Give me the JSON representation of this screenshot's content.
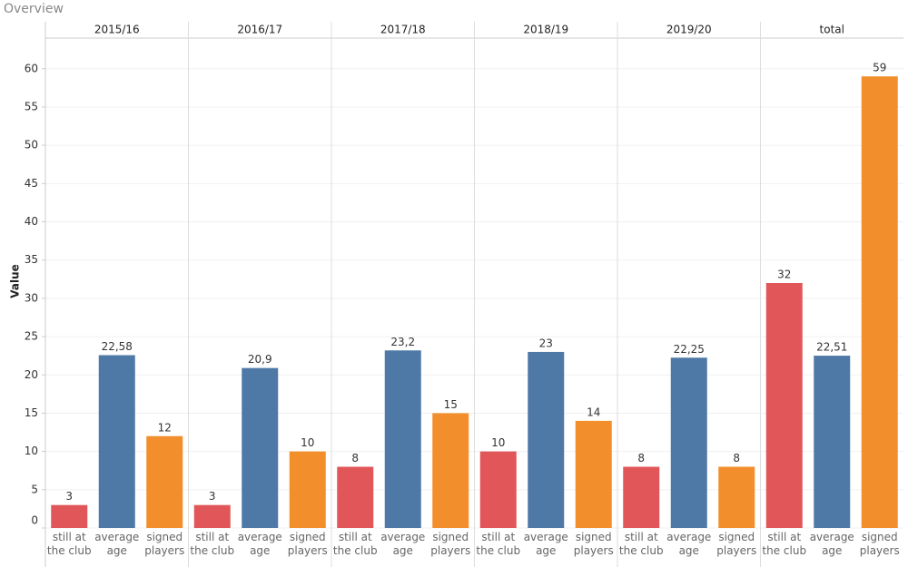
{
  "chart_data": {
    "type": "bar",
    "title": "Overview",
    "y_label": "Value",
    "categories": [
      "still at the club",
      "average age",
      "signed players"
    ],
    "colors": [
      "#e15759",
      "#4e79a7",
      "#f28e2b"
    ],
    "panels": [
      {
        "name": "2015/16",
        "values": [
          3,
          22.58,
          12
        ],
        "value_labels": [
          "3",
          "22,58",
          "12"
        ]
      },
      {
        "name": "2016/17",
        "values": [
          3,
          20.9,
          10
        ],
        "value_labels": [
          "3",
          "20,9",
          "10"
        ]
      },
      {
        "name": "2017/18",
        "values": [
          8,
          23.2,
          15
        ],
        "value_labels": [
          "8",
          "23,2",
          "15"
        ]
      },
      {
        "name": "2018/19",
        "values": [
          10,
          23,
          14
        ],
        "value_labels": [
          "10",
          "23",
          "14"
        ]
      },
      {
        "name": "2019/20",
        "values": [
          8,
          22.25,
          8
        ],
        "value_labels": [
          "8",
          "22,25",
          "8"
        ]
      },
      {
        "name": "total",
        "values": [
          32,
          22.51,
          59
        ],
        "value_labels": [
          "32",
          "22,51",
          "59"
        ]
      }
    ],
    "ylim": [
      0,
      64
    ],
    "yticks": [
      0,
      5,
      10,
      15,
      20,
      25,
      30,
      35,
      40,
      45,
      50,
      55,
      60
    ],
    "grid": true
  }
}
